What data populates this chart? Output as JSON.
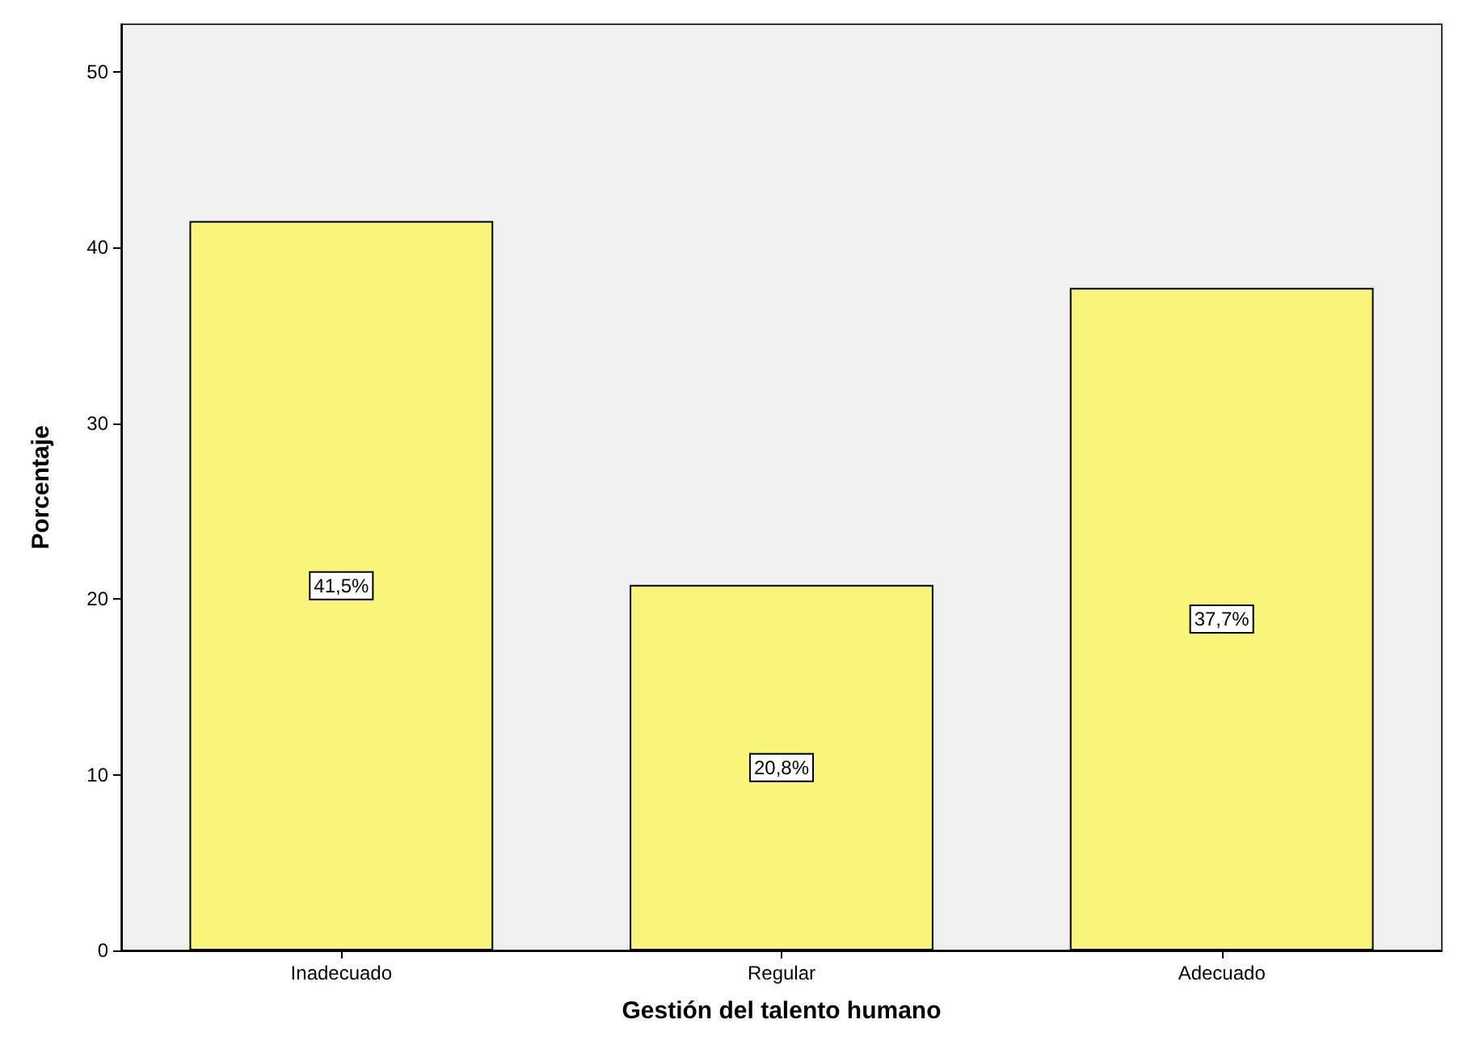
{
  "chart_data": {
    "type": "bar",
    "xlabel": "Gestión del talento humano",
    "ylabel": "Porcentaje",
    "categories": [
      "Inadecuado",
      "Regular",
      "Adecuado"
    ],
    "values": [
      41.5,
      20.8,
      37.7
    ],
    "value_labels": [
      "41,5%",
      "20,8%",
      "37,7%"
    ],
    "color": "#f8f57a",
    "ylim": [
      0,
      52.7
    ],
    "yticks": [
      0,
      10,
      20,
      30,
      40,
      50
    ],
    "grid": false
  }
}
